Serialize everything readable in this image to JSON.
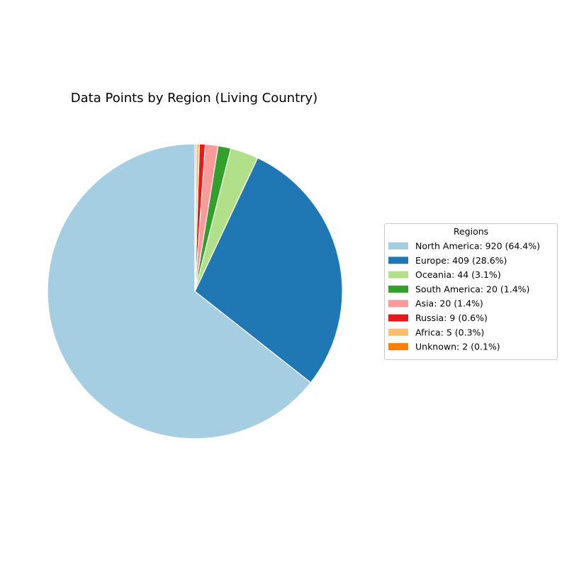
{
  "chart_data": {
    "type": "pie",
    "title": "Data Points by Region (Living Country)",
    "legend": {
      "title": "Regions",
      "placement": "center-right"
    },
    "start_angle_deg": 90,
    "direction": "counterclockwise",
    "slices": [
      {
        "name": "North America",
        "value": 920,
        "percent": 64.4,
        "label": "North America: 920 (64.4%)",
        "color": "#a6cee3"
      },
      {
        "name": "Europe",
        "value": 409,
        "percent": 28.6,
        "label": "Europe: 409 (28.6%)",
        "color": "#1f78b4"
      },
      {
        "name": "Oceania",
        "value": 44,
        "percent": 3.1,
        "label": "Oceania: 44 (3.1%)",
        "color": "#b2df8a"
      },
      {
        "name": "South America",
        "value": 20,
        "percent": 1.4,
        "label": "South America: 20 (1.4%)",
        "color": "#33a02c"
      },
      {
        "name": "Asia",
        "value": 20,
        "percent": 1.4,
        "label": "Asia: 20 (1.4%)",
        "color": "#fb9a99"
      },
      {
        "name": "Russia",
        "value": 9,
        "percent": 0.6,
        "label": "Russia: 9 (0.6%)",
        "color": "#e31a1c"
      },
      {
        "name": "Africa",
        "value": 5,
        "percent": 0.3,
        "label": "Africa: 5 (0.3%)",
        "color": "#fdbf6f"
      },
      {
        "name": "Unknown",
        "value": 2,
        "percent": 0.1,
        "label": "Unknown: 2 (0.1%)",
        "color": "#ff7f00"
      }
    ]
  }
}
